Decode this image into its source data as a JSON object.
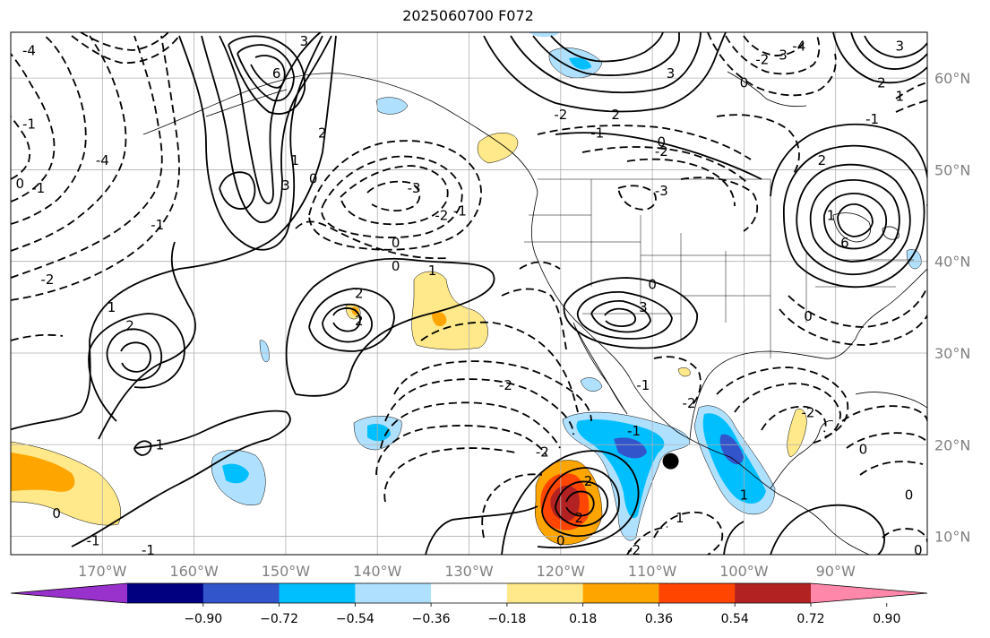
{
  "title": "2025060700 F072",
  "map": {
    "lon_range": [
      -180,
      -80
    ],
    "lat_range": [
      8,
      65
    ],
    "grid": true,
    "lat_ticks": [
      {
        "value": 10,
        "label": "10°N"
      },
      {
        "value": 20,
        "label": "20°N"
      },
      {
        "value": 30,
        "label": "30°N"
      },
      {
        "value": 40,
        "label": "40°N"
      },
      {
        "value": 50,
        "label": "50°N"
      },
      {
        "value": 60,
        "label": "60°N"
      }
    ],
    "lon_ticks": [
      {
        "value": -170,
        "label": "170°W"
      },
      {
        "value": -160,
        "label": "160°W"
      },
      {
        "value": -150,
        "label": "150°W"
      },
      {
        "value": -140,
        "label": "140°W"
      },
      {
        "value": -130,
        "label": "130°W"
      },
      {
        "value": -120,
        "label": "120°W"
      },
      {
        "value": -110,
        "label": "110°W"
      },
      {
        "value": -100,
        "label": "100°W"
      },
      {
        "value": -90,
        "label": "90°W"
      }
    ],
    "marker": {
      "lon": -108,
      "lat": 18.2,
      "color": "#000000"
    }
  },
  "colorbar": {
    "colors": [
      "#9932cc",
      "#000080",
      "#3355cc",
      "#00bfff",
      "#afe1ff",
      "#ffffff",
      "#ffe98a",
      "#ffa500",
      "#ff4500",
      "#b22222",
      "#ff88aa"
    ],
    "tick_labels": [
      "−0.90",
      "−0.72",
      "−0.54",
      "−0.36",
      "−0.18",
      "0.18",
      "0.36",
      "0.54",
      "0.72",
      "0.90"
    ],
    "extend": "both"
  },
  "contour_labels": [
    {
      "text": "-2",
      "lon": -120,
      "lat": 56
    },
    {
      "text": "-3",
      "lon": -136,
      "lat": 48
    },
    {
      "text": "-2",
      "lon": -133,
      "lat": 45
    },
    {
      "text": "-1",
      "lon": -131,
      "lat": 45.5
    },
    {
      "text": "0",
      "lon": -138,
      "lat": 42
    },
    {
      "text": "0",
      "lon": -138,
      "lat": 39.5
    },
    {
      "text": "1",
      "lon": -134,
      "lat": 39
    },
    {
      "text": "2",
      "lon": -142,
      "lat": 36.5
    },
    {
      "text": "2",
      "lon": -142,
      "lat": 33.5
    },
    {
      "text": "3",
      "lon": -150,
      "lat": 48.3
    },
    {
      "text": "1",
      "lon": -149,
      "lat": 51
    },
    {
      "text": "2",
      "lon": -146,
      "lat": 54
    },
    {
      "text": "0",
      "lon": -147,
      "lat": 49
    },
    {
      "text": "-1",
      "lon": -164,
      "lat": 44
    },
    {
      "text": "-2",
      "lon": -176,
      "lat": 38
    },
    {
      "text": "1",
      "lon": -169,
      "lat": 35
    },
    {
      "text": "2",
      "lon": -167,
      "lat": 33
    },
    {
      "text": "-1",
      "lon": -164,
      "lat": 20
    },
    {
      "text": "0",
      "lon": -175,
      "lat": 12.5
    },
    {
      "text": "-1",
      "lon": -171,
      "lat": 9.5
    },
    {
      "text": "-1",
      "lon": -165,
      "lat": 8.5
    },
    {
      "text": "-2",
      "lon": -122,
      "lat": 19.2
    },
    {
      "text": "-2",
      "lon": -126,
      "lat": 26.5
    },
    {
      "text": "-1",
      "lon": -112,
      "lat": 21.5
    },
    {
      "text": "-2",
      "lon": -106,
      "lat": 24.5
    },
    {
      "text": "-1",
      "lon": -111,
      "lat": 26.5
    },
    {
      "text": "2",
      "lon": -117,
      "lat": 16
    },
    {
      "text": "2",
      "lon": -118,
      "lat": 12
    },
    {
      "text": "0",
      "lon": -120,
      "lat": 9.5
    },
    {
      "text": "-2",
      "lon": -112,
      "lat": 8.5
    },
    {
      "text": "1",
      "lon": -100,
      "lat": 14.5
    },
    {
      "text": "1",
      "lon": -107,
      "lat": 12
    },
    {
      "text": "-2",
      "lon": -93,
      "lat": 23.5
    },
    {
      "text": "0",
      "lon": -87,
      "lat": 19.5
    },
    {
      "text": "0",
      "lon": -82,
      "lat": 14.5
    },
    {
      "text": "0",
      "lon": -81,
      "lat": 8.5
    },
    {
      "text": "0",
      "lon": -110,
      "lat": 37.5
    },
    {
      "text": "3",
      "lon": -111,
      "lat": 35
    },
    {
      "text": "-3",
      "lon": -109,
      "lat": 47.7
    },
    {
      "text": "-2",
      "lon": -109,
      "lat": 52
    },
    {
      "text": "0",
      "lon": -109,
      "lat": 53
    },
    {
      "text": "-1",
      "lon": -116,
      "lat": 54
    },
    {
      "text": "2",
      "lon": -114,
      "lat": 56
    },
    {
      "text": "3",
      "lon": -108,
      "lat": 60.5
    },
    {
      "text": "6",
      "lon": -89,
      "lat": 42
    },
    {
      "text": "1",
      "lon": -90.5,
      "lat": 45
    },
    {
      "text": "2",
      "lon": -91.5,
      "lat": 51
    },
    {
      "text": "0",
      "lon": -93,
      "lat": 34
    },
    {
      "text": "-1",
      "lon": -86,
      "lat": 55.5
    },
    {
      "text": "0",
      "lon": -100,
      "lat": 59.5
    },
    {
      "text": "-2",
      "lon": -98,
      "lat": 62
    },
    {
      "text": "-3",
      "lon": -96,
      "lat": 62.5
    },
    {
      "text": "-4",
      "lon": -94,
      "lat": 63.5
    },
    {
      "text": "2",
      "lon": -85,
      "lat": 59.5
    },
    {
      "text": "1",
      "lon": -83,
      "lat": 58
    },
    {
      "text": "3",
      "lon": -83,
      "lat": 63.5
    },
    {
      "text": "6",
      "lon": -151,
      "lat": 60.5
    },
    {
      "text": "3",
      "lon": -148,
      "lat": 64
    },
    {
      "text": "-4",
      "lon": -178,
      "lat": 63
    },
    {
      "text": "-1",
      "lon": -178,
      "lat": 55
    },
    {
      "text": "-4",
      "lon": -170,
      "lat": 51
    },
    {
      "text": "0",
      "lon": -179,
      "lat": 48.5
    },
    {
      "text": "-1",
      "lon": -177,
      "lat": 48
    }
  ]
}
